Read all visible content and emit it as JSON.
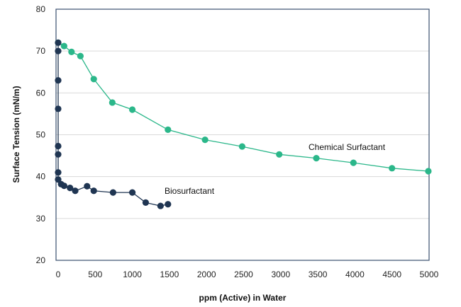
{
  "chart_data": {
    "type": "line",
    "title": "",
    "xlabel": "ppm (Active) in Water",
    "ylabel": "Surface  Tension (mN/m)",
    "xlim": [
      0,
      5000
    ],
    "ylim": [
      20,
      80
    ],
    "xticks": [
      "0",
      "500",
      "1000",
      "1500",
      "2000",
      "2500",
      "3000",
      "3500",
      "4000",
      "4500",
      "5000"
    ],
    "yticks": [
      "20",
      "30",
      "40",
      "50",
      "60",
      "70",
      "80"
    ],
    "grid": "horizontal",
    "series": [
      {
        "name": "Chemical Surfactant",
        "label": "Chemical Surfactant",
        "color": "#2bb78a",
        "points": [
          [
            0,
            72
          ],
          [
            80,
            71.2
          ],
          [
            180,
            69.8
          ],
          [
            300,
            68.8
          ],
          [
            480,
            63.3
          ],
          [
            730,
            57.7
          ],
          [
            1000,
            56
          ],
          [
            1480,
            51.2
          ],
          [
            1980,
            48.8
          ],
          [
            2480,
            47.2
          ],
          [
            2980,
            45.3
          ],
          [
            3480,
            44.4
          ],
          [
            3980,
            43.3
          ],
          [
            4500,
            42
          ],
          [
            4990,
            41.3
          ]
        ]
      },
      {
        "name": "Biosurfactant",
        "label": "Biosurfactant",
        "color": "#1f3552",
        "points": [
          [
            0,
            72
          ],
          [
            0,
            70
          ],
          [
            0,
            63
          ],
          [
            0,
            56.2
          ],
          [
            0,
            47.3
          ],
          [
            0,
            45.3
          ],
          [
            0,
            41
          ],
          [
            0,
            39.3
          ],
          [
            40,
            38.2
          ],
          [
            80,
            37.8
          ],
          [
            160,
            37.3
          ],
          [
            230,
            36.6
          ],
          [
            390,
            37.7
          ],
          [
            480,
            36.6
          ],
          [
            740,
            36.2
          ],
          [
            1000,
            36.2
          ],
          [
            1180,
            33.8
          ],
          [
            1380,
            33
          ],
          [
            1480,
            33.4
          ]
        ]
      }
    ]
  }
}
